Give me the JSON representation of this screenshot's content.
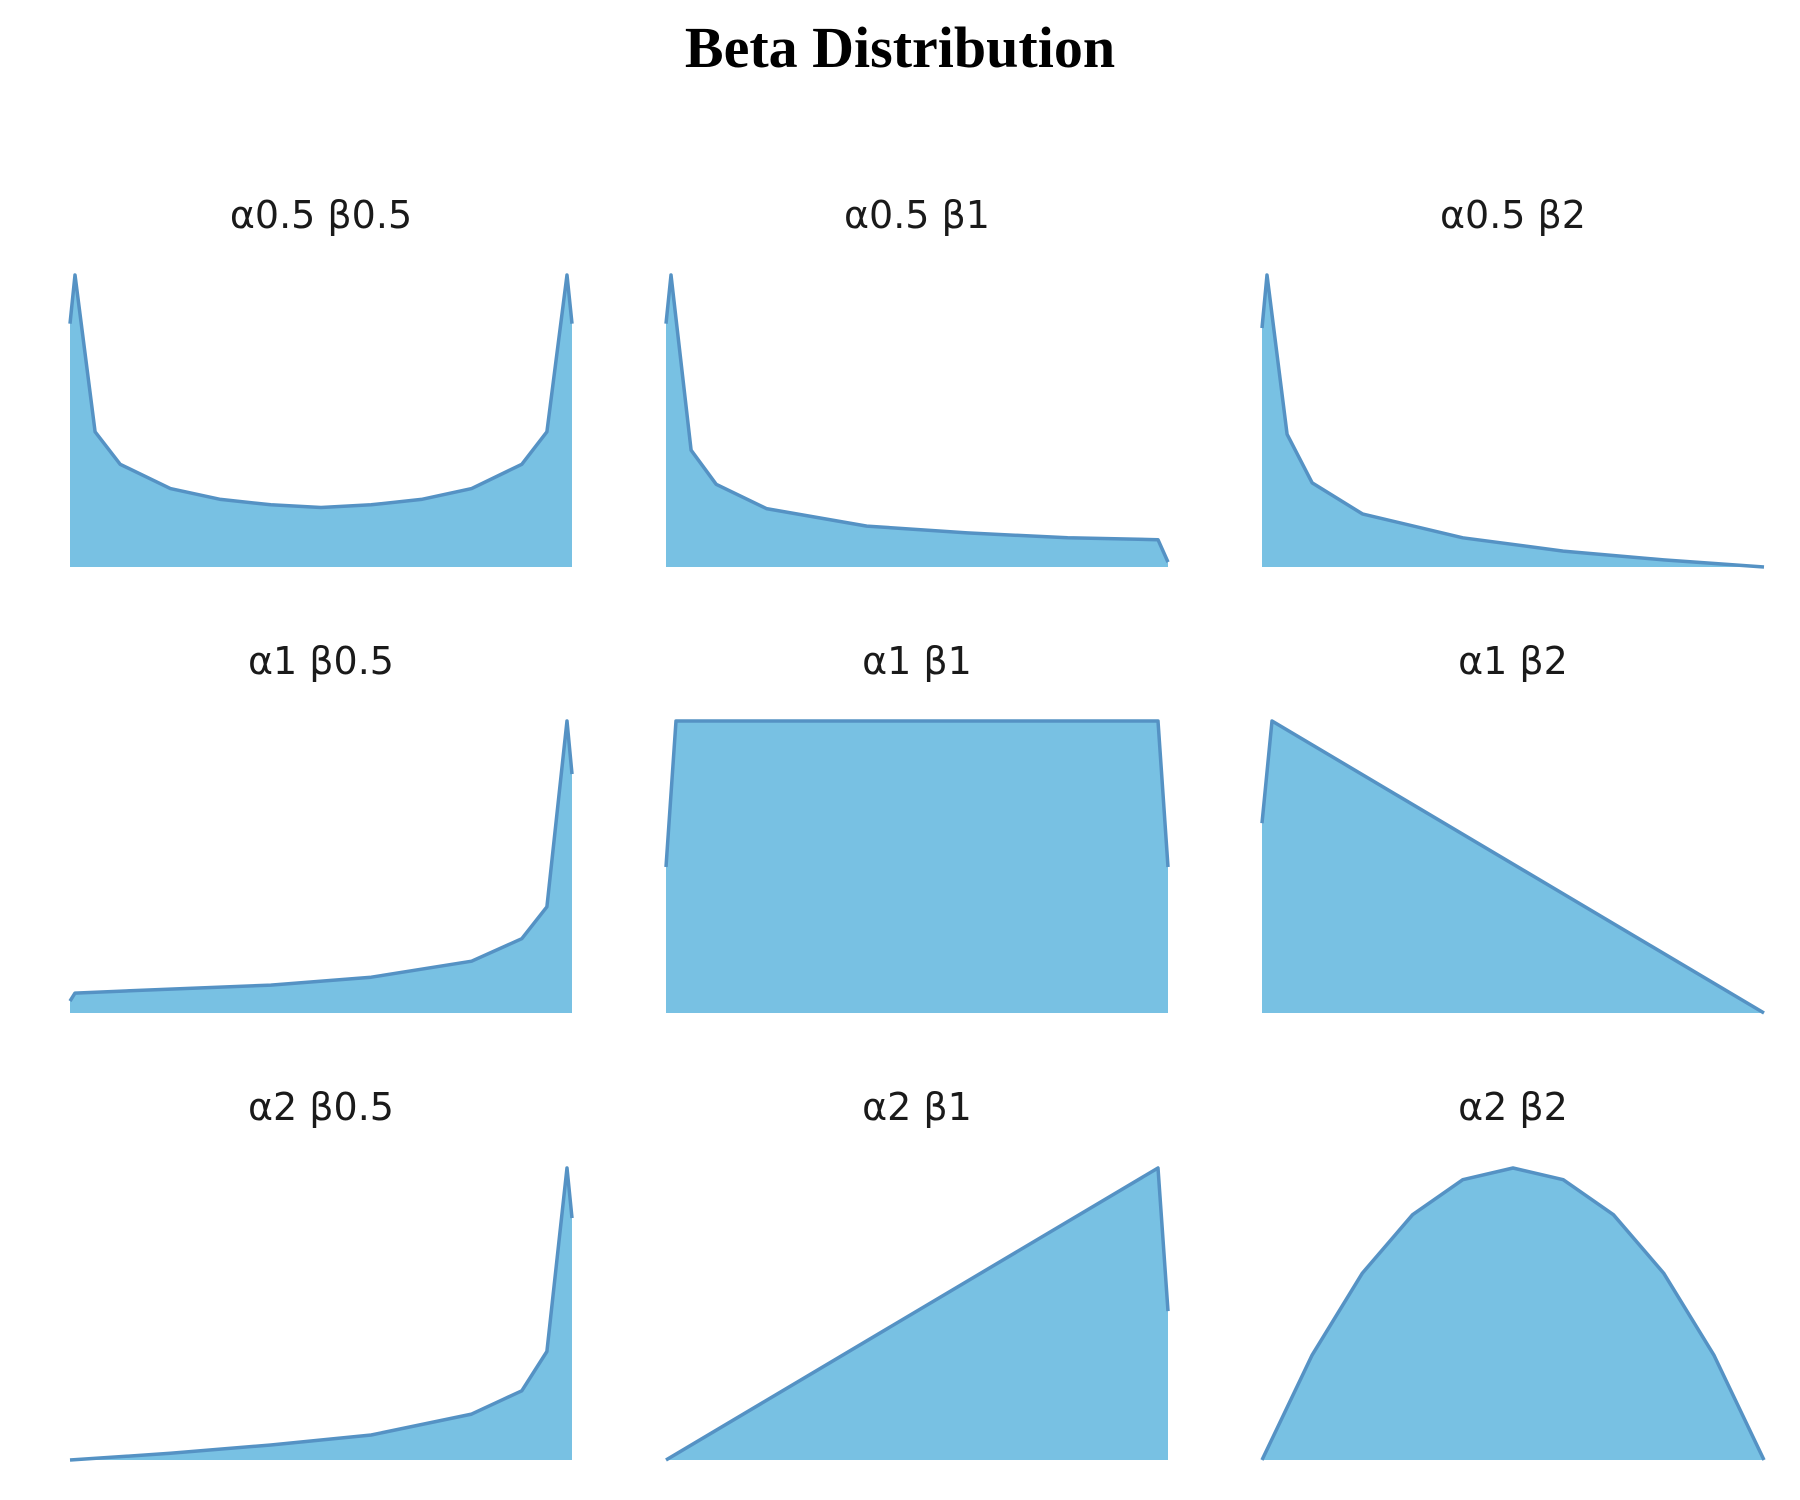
{
  "title": "Beta Distribution",
  "colors": {
    "fill": "#78c1e3",
    "line": "#5592c4"
  },
  "chart_data": [
    {
      "type": "area",
      "title": "α0.5 β0.5",
      "alpha": 0.5,
      "beta": 0.5,
      "xlim": [
        0,
        1
      ],
      "x": [
        0,
        0.01,
        0.05,
        0.1,
        0.2,
        0.3,
        0.4,
        0.5,
        0.6,
        0.7,
        0.8,
        0.9,
        0.95,
        0.99,
        1
      ],
      "y": [
        0.9,
        1.08,
        0.5,
        0.38,
        0.29,
        0.25,
        0.23,
        0.22,
        0.23,
        0.25,
        0.29,
        0.38,
        0.5,
        1.08,
        0.9
      ]
    },
    {
      "type": "area",
      "title": "α0.5 β1",
      "alpha": 0.5,
      "beta": 1,
      "xlim": [
        0,
        1
      ],
      "x": [
        0,
        0.01,
        0.05,
        0.1,
        0.2,
        0.4,
        0.6,
        0.8,
        0.98,
        1
      ],
      "y": [
        2.5,
        3.0,
        1.2,
        0.85,
        0.6,
        0.42,
        0.35,
        0.3,
        0.28,
        0.05
      ]
    },
    {
      "type": "area",
      "title": "α0.5 β2",
      "alpha": 0.5,
      "beta": 2,
      "xlim": [
        0,
        1
      ],
      "x": [
        0,
        0.01,
        0.05,
        0.1,
        0.2,
        0.4,
        0.6,
        0.8,
        1
      ],
      "y": [
        2.7,
        3.3,
        1.5,
        0.95,
        0.6,
        0.33,
        0.18,
        0.08,
        0
      ]
    },
    {
      "type": "area",
      "title": "α1 β0.5",
      "alpha": 1,
      "beta": 0.5,
      "xlim": [
        0,
        1
      ],
      "x": [
        0,
        0.01,
        0.2,
        0.4,
        0.6,
        0.8,
        0.9,
        0.95,
        0.99,
        1
      ],
      "y": [
        0.09,
        0.15,
        0.18,
        0.21,
        0.27,
        0.39,
        0.56,
        0.8,
        2.2,
        1.8
      ]
    },
    {
      "type": "area",
      "title": "α1 β1",
      "alpha": 1,
      "beta": 1,
      "xlim": [
        0,
        1
      ],
      "x": [
        0,
        0.02,
        0.5,
        0.98,
        1
      ],
      "y": [
        0.5,
        1,
        1,
        1,
        0.5
      ]
    },
    {
      "type": "area",
      "title": "α1 β2",
      "alpha": 1,
      "beta": 2,
      "xlim": [
        0,
        1
      ],
      "x": [
        0,
        0.02,
        1
      ],
      "y": [
        1.3,
        2.0,
        0
      ]
    },
    {
      "type": "area",
      "title": "α2 β0.5",
      "alpha": 2,
      "beta": 0.5,
      "xlim": [
        0,
        1
      ],
      "x": [
        0,
        0.2,
        0.4,
        0.6,
        0.8,
        0.9,
        0.95,
        0.99,
        1
      ],
      "y": [
        0,
        0.08,
        0.18,
        0.3,
        0.55,
        0.83,
        1.3,
        3.5,
        2.9
      ]
    },
    {
      "type": "area",
      "title": "α2 β1",
      "alpha": 2,
      "beta": 1,
      "xlim": [
        0,
        1
      ],
      "x": [
        0,
        0.98,
        1
      ],
      "y": [
        0,
        2.0,
        1.02
      ]
    },
    {
      "type": "area",
      "title": "α2 β2",
      "alpha": 2,
      "beta": 2,
      "xlim": [
        0,
        1
      ],
      "x": [
        0,
        0.1,
        0.2,
        0.3,
        0.4,
        0.5,
        0.6,
        0.7,
        0.8,
        0.9,
        1
      ],
      "y": [
        0,
        0.54,
        0.96,
        1.26,
        1.44,
        1.5,
        1.44,
        1.26,
        0.96,
        0.54,
        0
      ]
    }
  ]
}
